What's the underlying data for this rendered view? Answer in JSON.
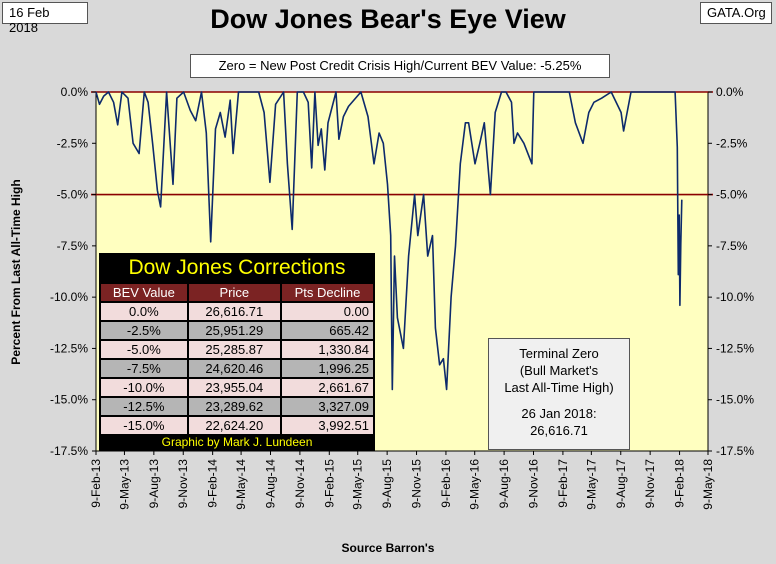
{
  "header": {
    "date": "16 Feb 2018",
    "site": "GATA.Org",
    "title": "Dow Jones Bear's Eye View",
    "subtitle": "Zero = New Post Credit Crisis High/Current BEV Value:  -5.25%"
  },
  "chart_data": {
    "type": "line",
    "title": "Dow Jones Bear's Eye View",
    "ylabel": "Percent From Last All-Time High",
    "xlabel": "Source Barron's",
    "ylim": [
      -17.5,
      0
    ],
    "yticks": [
      "0.0%",
      "-2.5%",
      "-5.0%",
      "-7.5%",
      "-10.0%",
      "-12.5%",
      "-15.0%",
      "-17.5%"
    ],
    "ytick_values": [
      0,
      -2.5,
      -5,
      -7.5,
      -10,
      -12.5,
      -15,
      -17.5
    ],
    "xticks": [
      "9-Feb-13",
      "9-May-13",
      "9-Aug-13",
      "9-Nov-13",
      "9-Feb-14",
      "9-May-14",
      "9-Aug-14",
      "9-Nov-14",
      "9-Feb-15",
      "9-May-15",
      "9-Aug-15",
      "9-Nov-15",
      "9-Feb-16",
      "9-May-16",
      "9-Aug-16",
      "9-Nov-16",
      "9-Feb-17",
      "9-May-17",
      "9-Aug-17",
      "9-Nov-17",
      "9-Feb-18",
      "9-May-18"
    ],
    "reference_lines": [
      0,
      -5
    ],
    "background": "#ffffc0",
    "line_color": "#0d2a6b",
    "ref_color": "#8b0000",
    "series": [
      {
        "x": [
          "2013-02-09",
          "2013-02-20",
          "2013-03-05",
          "2013-03-20",
          "2013-04-05",
          "2013-04-18",
          "2013-05-01",
          "2013-05-20",
          "2013-06-05",
          "2013-06-24",
          "2013-07-10",
          "2013-07-22",
          "2013-08-05",
          "2013-08-20",
          "2013-08-30",
          "2013-09-18",
          "2013-10-08",
          "2013-10-20",
          "2013-11-10",
          "2013-12-01",
          "2013-12-18",
          "2014-01-05",
          "2014-01-20",
          "2014-02-03",
          "2014-02-18",
          "2014-03-05",
          "2014-03-20",
          "2014-04-05",
          "2014-04-14",
          "2014-05-01",
          "2014-05-20",
          "2014-06-10",
          "2014-07-03",
          "2014-07-20",
          "2014-08-07",
          "2014-08-25",
          "2014-09-19",
          "2014-10-01",
          "2014-10-16",
          "2014-11-01",
          "2014-11-20",
          "2014-12-05",
          "2014-12-16",
          "2014-12-26",
          "2015-01-05",
          "2015-01-15",
          "2015-01-26",
          "2015-02-05",
          "2015-03-02",
          "2015-03-11",
          "2015-03-25",
          "2015-04-10",
          "2015-05-19",
          "2015-06-10",
          "2015-06-29",
          "2015-07-15",
          "2015-07-28",
          "2015-08-10",
          "2015-08-20",
          "2015-08-25",
          "2015-09-01",
          "2015-09-10",
          "2015-09-29",
          "2015-10-15",
          "2015-11-03",
          "2015-11-13",
          "2015-12-01",
          "2015-12-14",
          "2015-12-29",
          "2016-01-07",
          "2016-01-20",
          "2016-02-01",
          "2016-02-11",
          "2016-02-25",
          "2016-03-10",
          "2016-03-25",
          "2016-04-10",
          "2016-04-20",
          "2016-05-10",
          "2016-05-25",
          "2016-06-08",
          "2016-06-27",
          "2016-07-12",
          "2016-08-01",
          "2016-08-15",
          "2016-09-01",
          "2016-09-09",
          "2016-09-20",
          "2016-10-10",
          "2016-11-04",
          "2016-11-10",
          "2016-12-01",
          "2017-01-01",
          "2017-02-01",
          "2017-03-01",
          "2017-03-20",
          "2017-04-13",
          "2017-05-01",
          "2017-05-17",
          "2017-06-10",
          "2017-07-10",
          "2017-08-10",
          "2017-08-18",
          "2017-09-10",
          "2017-10-10",
          "2017-11-10",
          "2017-12-10",
          "2018-01-10",
          "2018-01-26",
          "2018-02-02",
          "2018-02-05",
          "2018-02-08",
          "2018-02-10",
          "2018-02-13",
          "2018-02-16"
        ],
        "values": [
          0,
          -0.6,
          -0.2,
          0,
          -0.5,
          -1.6,
          0,
          -0.3,
          -2.5,
          -3.0,
          0,
          -0.5,
          -2.5,
          -4.8,
          -5.6,
          0,
          -4.5,
          -0.3,
          0,
          -0.9,
          -1.4,
          0,
          -2.0,
          -7.3,
          -1.8,
          -1.0,
          -2.2,
          -0.4,
          -3.0,
          0,
          0,
          0,
          0,
          -1.0,
          -4.4,
          -0.6,
          0,
          -3.5,
          -6.7,
          0,
          0,
          -0.5,
          -3.7,
          0,
          -2.6,
          -1.8,
          -3.8,
          -1.5,
          0,
          -2.3,
          -1.2,
          -0.7,
          0,
          -1.2,
          -3.5,
          -2.0,
          -2.5,
          -4.5,
          -7.0,
          -14.5,
          -8.0,
          -11.0,
          -12.5,
          -8.0,
          -5.0,
          -7.0,
          -5.0,
          -8.0,
          -7.0,
          -11.5,
          -13.3,
          -13.0,
          -14.5,
          -10.0,
          -7.5,
          -3.5,
          -1.5,
          -1.5,
          -3.5,
          -2.5,
          -1.5,
          -5.0,
          -1.0,
          0,
          0,
          -0.5,
          -2.5,
          -2.0,
          -2.5,
          -3.5,
          0,
          0,
          0,
          0,
          0,
          -1.5,
          -2.5,
          -1.0,
          -0.5,
          -0.3,
          0,
          -1.0,
          -1.9,
          0,
          0,
          0,
          0,
          0,
          0,
          -2.7,
          -8.9,
          -6.0,
          -10.4,
          -7.4,
          -5.25
        ]
      }
    ]
  },
  "corrections_table": {
    "title": "Dow Jones Corrections",
    "headers": [
      "BEV Value",
      "Price",
      "Pts Decline"
    ],
    "rows": [
      [
        "0.0%",
        "26,616.71",
        "0.00"
      ],
      [
        "-2.5%",
        "25,951.29",
        "665.42"
      ],
      [
        "-5.0%",
        "25,285.87",
        "1,330.84"
      ],
      [
        "-7.5%",
        "24,620.46",
        "1,996.25"
      ],
      [
        "-10.0%",
        "23,955.04",
        "2,661.67"
      ],
      [
        "-12.5%",
        "23,289.62",
        "3,327.09"
      ],
      [
        "-15.0%",
        "22,624.20",
        "3,992.51"
      ]
    ],
    "credit": "Graphic by Mark J. Lundeen"
  },
  "terminal_zero": {
    "line1": "Terminal Zero",
    "line2": "(Bull Market's",
    "line3": "Last All-Time High)",
    "line4": "26 Jan 2018:",
    "line5": "26,616.71"
  }
}
